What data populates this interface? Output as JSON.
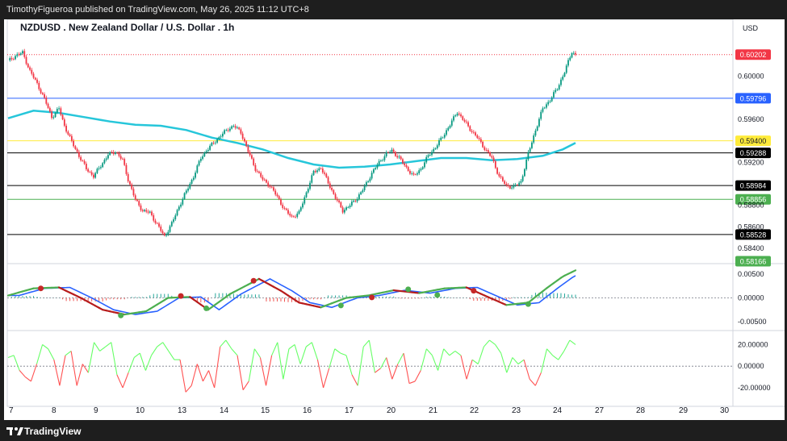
{
  "header": {
    "published_by": "TimothyFigueroa published on TradingView.com, May 26, 2025 11:12 UTC+8"
  },
  "footer": {
    "brand": "TradingView"
  },
  "chart_data": {
    "type": "candlestick",
    "symbol": "NZDUSD",
    "title": "NZDUSD . New Zealand Dollar / U.S. Dollar . 1h",
    "currency_label": "USD",
    "x_tick_labels": [
      "7",
      "8",
      "9",
      "10",
      "13",
      "14",
      "15",
      "16",
      "17",
      "20",
      "21",
      "22",
      "23",
      "24",
      "27",
      "28",
      "29",
      "30"
    ],
    "main": {
      "ylim": [
        0.5828,
        0.6038
      ],
      "y_ticks": [
        "0.60000",
        "0.59600",
        "0.59200",
        "0.58800",
        "0.58600",
        "0.58400"
      ],
      "close_path": [
        [
          0,
          0.6014
        ],
        [
          4,
          0.6019
        ],
        [
          8,
          0.6022
        ],
        [
          12,
          0.6005
        ],
        [
          16,
          0.5993
        ],
        [
          20,
          0.5979
        ],
        [
          24,
          0.5962
        ],
        [
          28,
          0.597
        ],
        [
          31,
          0.5954
        ],
        [
          35,
          0.5939
        ],
        [
          39,
          0.5926
        ],
        [
          43,
          0.5914
        ],
        [
          47,
          0.5907
        ],
        [
          51,
          0.5917
        ],
        [
          55,
          0.5927
        ],
        [
          59,
          0.593
        ],
        [
          63,
          0.5922
        ],
        [
          66,
          0.5904
        ],
        [
          70,
          0.5885
        ],
        [
          74,
          0.5875
        ],
        [
          78,
          0.5873
        ],
        [
          82,
          0.5862
        ],
        [
          86,
          0.5851
        ],
        [
          90,
          0.5863
        ],
        [
          94,
          0.5879
        ],
        [
          98,
          0.5893
        ],
        [
          102,
          0.5907
        ],
        [
          106,
          0.5924
        ],
        [
          109,
          0.5931
        ],
        [
          113,
          0.5938
        ],
        [
          117,
          0.5945
        ],
        [
          121,
          0.5951
        ],
        [
          124,
          0.5954
        ],
        [
          128,
          0.5948
        ],
        [
          132,
          0.593
        ],
        [
          136,
          0.5914
        ],
        [
          140,
          0.5904
        ],
        [
          144,
          0.5898
        ],
        [
          148,
          0.5888
        ],
        [
          152,
          0.5876
        ],
        [
          156,
          0.5869
        ],
        [
          160,
          0.5873
        ],
        [
          164,
          0.5892
        ],
        [
          168,
          0.5911
        ],
        [
          172,
          0.5915
        ],
        [
          176,
          0.5901
        ],
        [
          180,
          0.5887
        ],
        [
          184,
          0.5875
        ],
        [
          188,
          0.588
        ],
        [
          192,
          0.5887
        ],
        [
          196,
          0.5897
        ],
        [
          200,
          0.591
        ],
        [
          204,
          0.592
        ],
        [
          208,
          0.5928
        ],
        [
          211,
          0.5931
        ],
        [
          215,
          0.5924
        ],
        [
          219,
          0.5915
        ],
        [
          223,
          0.5907
        ],
        [
          227,
          0.5914
        ],
        [
          231,
          0.5926
        ],
        [
          235,
          0.5934
        ],
        [
          239,
          0.5944
        ],
        [
          243,
          0.5955
        ],
        [
          247,
          0.5967
        ],
        [
          250,
          0.596
        ],
        [
          254,
          0.5951
        ],
        [
          258,
          0.5943
        ],
        [
          262,
          0.5933
        ],
        [
          266,
          0.5924
        ],
        [
          270,
          0.5907
        ],
        [
          274,
          0.5898
        ],
        [
          278,
          0.5897
        ],
        [
          282,
          0.5902
        ],
        [
          286,
          0.5928
        ],
        [
          290,
          0.595
        ],
        [
          294,
          0.597
        ],
        [
          298,
          0.5978
        ],
        [
          302,
          0.5989
        ],
        [
          306,
          0.6004
        ],
        [
          310,
          0.6023
        ],
        [
          312,
          0.602
        ]
      ],
      "ma_path": [
        [
          0,
          0.5961
        ],
        [
          14,
          0.5968
        ],
        [
          28,
          0.5966
        ],
        [
          42,
          0.5962
        ],
        [
          56,
          0.5958
        ],
        [
          70,
          0.5955
        ],
        [
          84,
          0.5954
        ],
        [
          98,
          0.595
        ],
        [
          112,
          0.5943
        ],
        [
          126,
          0.5938
        ],
        [
          140,
          0.5932
        ],
        [
          154,
          0.5924
        ],
        [
          168,
          0.5918
        ],
        [
          182,
          0.5915
        ],
        [
          196,
          0.5916
        ],
        [
          210,
          0.5918
        ],
        [
          224,
          0.5921
        ],
        [
          238,
          0.5924
        ],
        [
          252,
          0.5924
        ],
        [
          266,
          0.5922
        ],
        [
          280,
          0.5923
        ],
        [
          294,
          0.5926
        ],
        [
          305,
          0.5932
        ],
        [
          312,
          0.5938
        ]
      ],
      "horizontal_levels": [
        {
          "price": 0.60202,
          "label": "0.60202",
          "color": "#f23645",
          "style": "dotted"
        },
        {
          "price": 0.59796,
          "label": "0.59796",
          "color": "#2962ff",
          "style": "solid"
        },
        {
          "price": 0.594,
          "label": "0.59400",
          "color": "#ffeb3b",
          "style": "solid"
        },
        {
          "price": 0.59288,
          "label": "0.59288",
          "color": "#000000",
          "style": "solid"
        },
        {
          "price": 0.58984,
          "label": "0.58984",
          "color": "#000000",
          "style": "solid"
        },
        {
          "price": 0.58856,
          "label": "0.58856",
          "color": "#4caf50",
          "style": "solid"
        },
        {
          "price": 0.58528,
          "label": "0.58528",
          "color": "#000000",
          "style": "solid"
        },
        {
          "price": 0.58166,
          "label": "0.58166",
          "color": "#4caf50",
          "style": "badge"
        }
      ]
    },
    "macd": {
      "ylim": [
        -0.0062,
        0.0067
      ],
      "y_ticks": [
        "0.00500",
        "0.00000",
        "-0.00500"
      ],
      "path": [
        [
          0,
          0.0005
        ],
        [
          14,
          0.002
        ],
        [
          28,
          0.0022
        ],
        [
          40,
          0.0
        ],
        [
          52,
          -0.0025
        ],
        [
          64,
          -0.0035
        ],
        [
          76,
          -0.0028
        ],
        [
          88,
          0.0
        ],
        [
          100,
          0.0002
        ],
        [
          110,
          -0.0025
        ],
        [
          122,
          0.0008
        ],
        [
          138,
          0.004
        ],
        [
          150,
          0.0015
        ],
        [
          160,
          -0.001
        ],
        [
          172,
          -0.002
        ],
        [
          186,
          0.0
        ],
        [
          198,
          0.0005
        ],
        [
          212,
          0.0016
        ],
        [
          226,
          0.001
        ],
        [
          240,
          0.002
        ],
        [
          252,
          0.0022
        ],
        [
          262,
          0.0005
        ],
        [
          274,
          -0.0015
        ],
        [
          286,
          -0.001
        ],
        [
          296,
          0.002
        ],
        [
          305,
          0.0045
        ],
        [
          312,
          0.0058
        ]
      ],
      "cross_points": [
        [
          18,
          0.002
        ],
        [
          62,
          -0.0037
        ],
        [
          95,
          0.0004
        ],
        [
          109,
          -0.0022
        ],
        [
          135,
          0.0036
        ],
        [
          183,
          -0.0016
        ],
        [
          200,
          0.0001
        ],
        [
          220,
          0.0018
        ],
        [
          236,
          0.0006
        ],
        [
          256,
          0.0015
        ],
        [
          286,
          -0.0013
        ]
      ],
      "cross_types": [
        "bear",
        "bull",
        "bear",
        "bull",
        "bear",
        "bull",
        "bear",
        "bull",
        "bull",
        "bear",
        "bull"
      ]
    },
    "oscillator": {
      "ylim": [
        -26,
        30
      ],
      "y_ticks": [
        "20.00000",
        "0.00000",
        "-20.00000"
      ],
      "values": [
        8,
        10,
        -4,
        -10,
        -14,
        2,
        20,
        16,
        6,
        -18,
        10,
        14,
        -18,
        2,
        -6,
        22,
        14,
        18,
        22,
        -8,
        -20,
        -6,
        8,
        12,
        -4,
        10,
        18,
        22,
        14,
        6,
        6,
        -24,
        -18,
        2,
        -14,
        -4,
        -20,
        18,
        24,
        16,
        10,
        -22,
        -14,
        16,
        8,
        -18,
        10,
        22,
        -12,
        16,
        20,
        2,
        18,
        22,
        6,
        -20,
        -2,
        16,
        12,
        10,
        -8,
        -18,
        18,
        24,
        -6,
        -2,
        8,
        -12,
        2,
        12,
        -16,
        -14,
        -4,
        16,
        10,
        -4,
        16,
        10,
        14,
        10,
        -12,
        6,
        2,
        18,
        24,
        20,
        12,
        -6,
        8,
        2,
        6,
        -12,
        -18,
        -6,
        16,
        10,
        6,
        14,
        24,
        20
      ]
    }
  }
}
